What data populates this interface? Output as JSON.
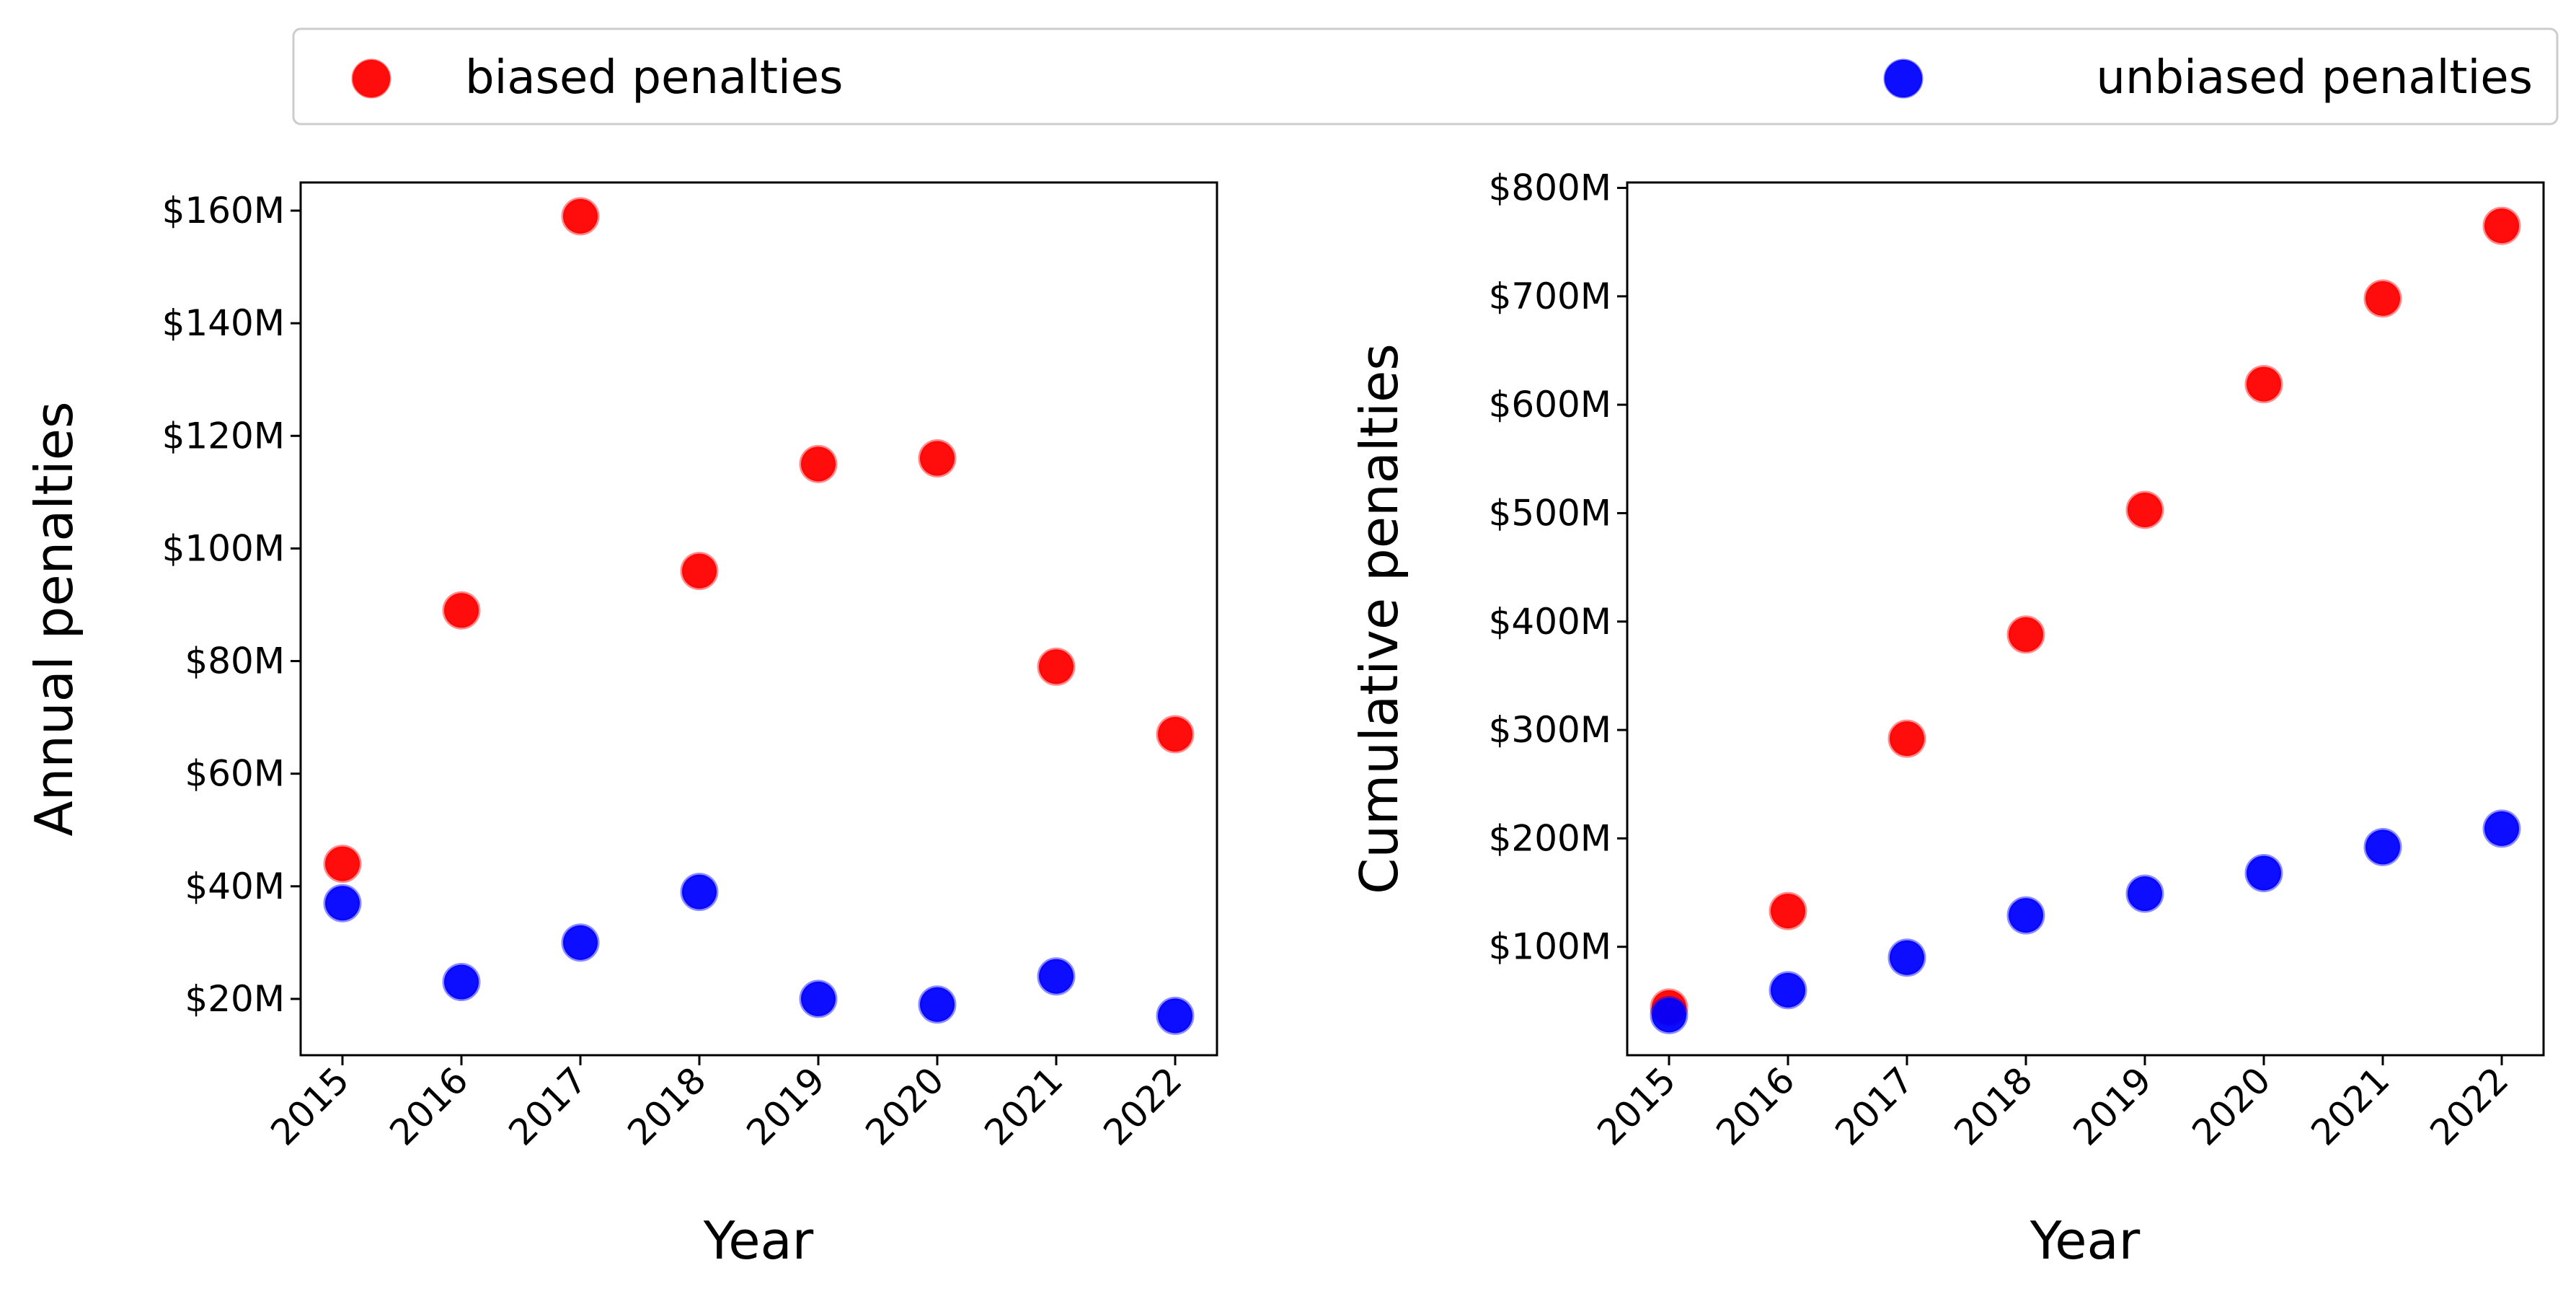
{
  "colors": {
    "biased": "#ff0000",
    "unbiased": "#0000ff"
  },
  "legend": {
    "placement": "top",
    "entries": [
      {
        "name": "biased penalties",
        "color": "#ff0000"
      },
      {
        "name": "unbiased penalties",
        "color": "#0000ff"
      }
    ]
  },
  "chart_data": [
    {
      "type": "scatter",
      "xlabel": "Year",
      "ylabel": "Annual penalties",
      "x": [
        "2015",
        "2016",
        "2017",
        "2018",
        "2019",
        "2020",
        "2021",
        "2022"
      ],
      "ylim": [
        10,
        165
      ],
      "yticks": [
        20,
        40,
        60,
        80,
        100,
        120,
        140,
        160
      ],
      "ytick_labels": [
        "$20M",
        "$40M",
        "$60M",
        "$80M",
        "$100M",
        "$120M",
        "$140M",
        "$160M"
      ],
      "grid": false,
      "series": [
        {
          "name": "biased penalties",
          "color": "#ff0000",
          "values": [
            44,
            89,
            159,
            96,
            115,
            116,
            79,
            67
          ]
        },
        {
          "name": "unbiased penalties",
          "color": "#0000ff",
          "values": [
            37,
            23,
            30,
            39,
            20,
            19,
            24,
            17
          ]
        }
      ]
    },
    {
      "type": "scatter",
      "xlabel": "Year",
      "ylabel": "Cumulative penalties",
      "x": [
        "2015",
        "2016",
        "2017",
        "2018",
        "2019",
        "2020",
        "2021",
        "2022"
      ],
      "ylim": [
        0,
        805
      ],
      "yticks": [
        100,
        200,
        300,
        400,
        500,
        600,
        700,
        800
      ],
      "ytick_labels": [
        "$100M",
        "$200M",
        "$300M",
        "$400M",
        "$500M",
        "$600M",
        "$700M",
        "$800M"
      ],
      "grid": false,
      "series": [
        {
          "name": "biased penalties",
          "color": "#ff0000",
          "values": [
            44,
            133,
            292,
            388,
            503,
            619,
            698,
            765
          ]
        },
        {
          "name": "unbiased penalties",
          "color": "#0000ff",
          "values": [
            37,
            60,
            90,
            129,
            149,
            168,
            192,
            209
          ]
        }
      ]
    }
  ]
}
